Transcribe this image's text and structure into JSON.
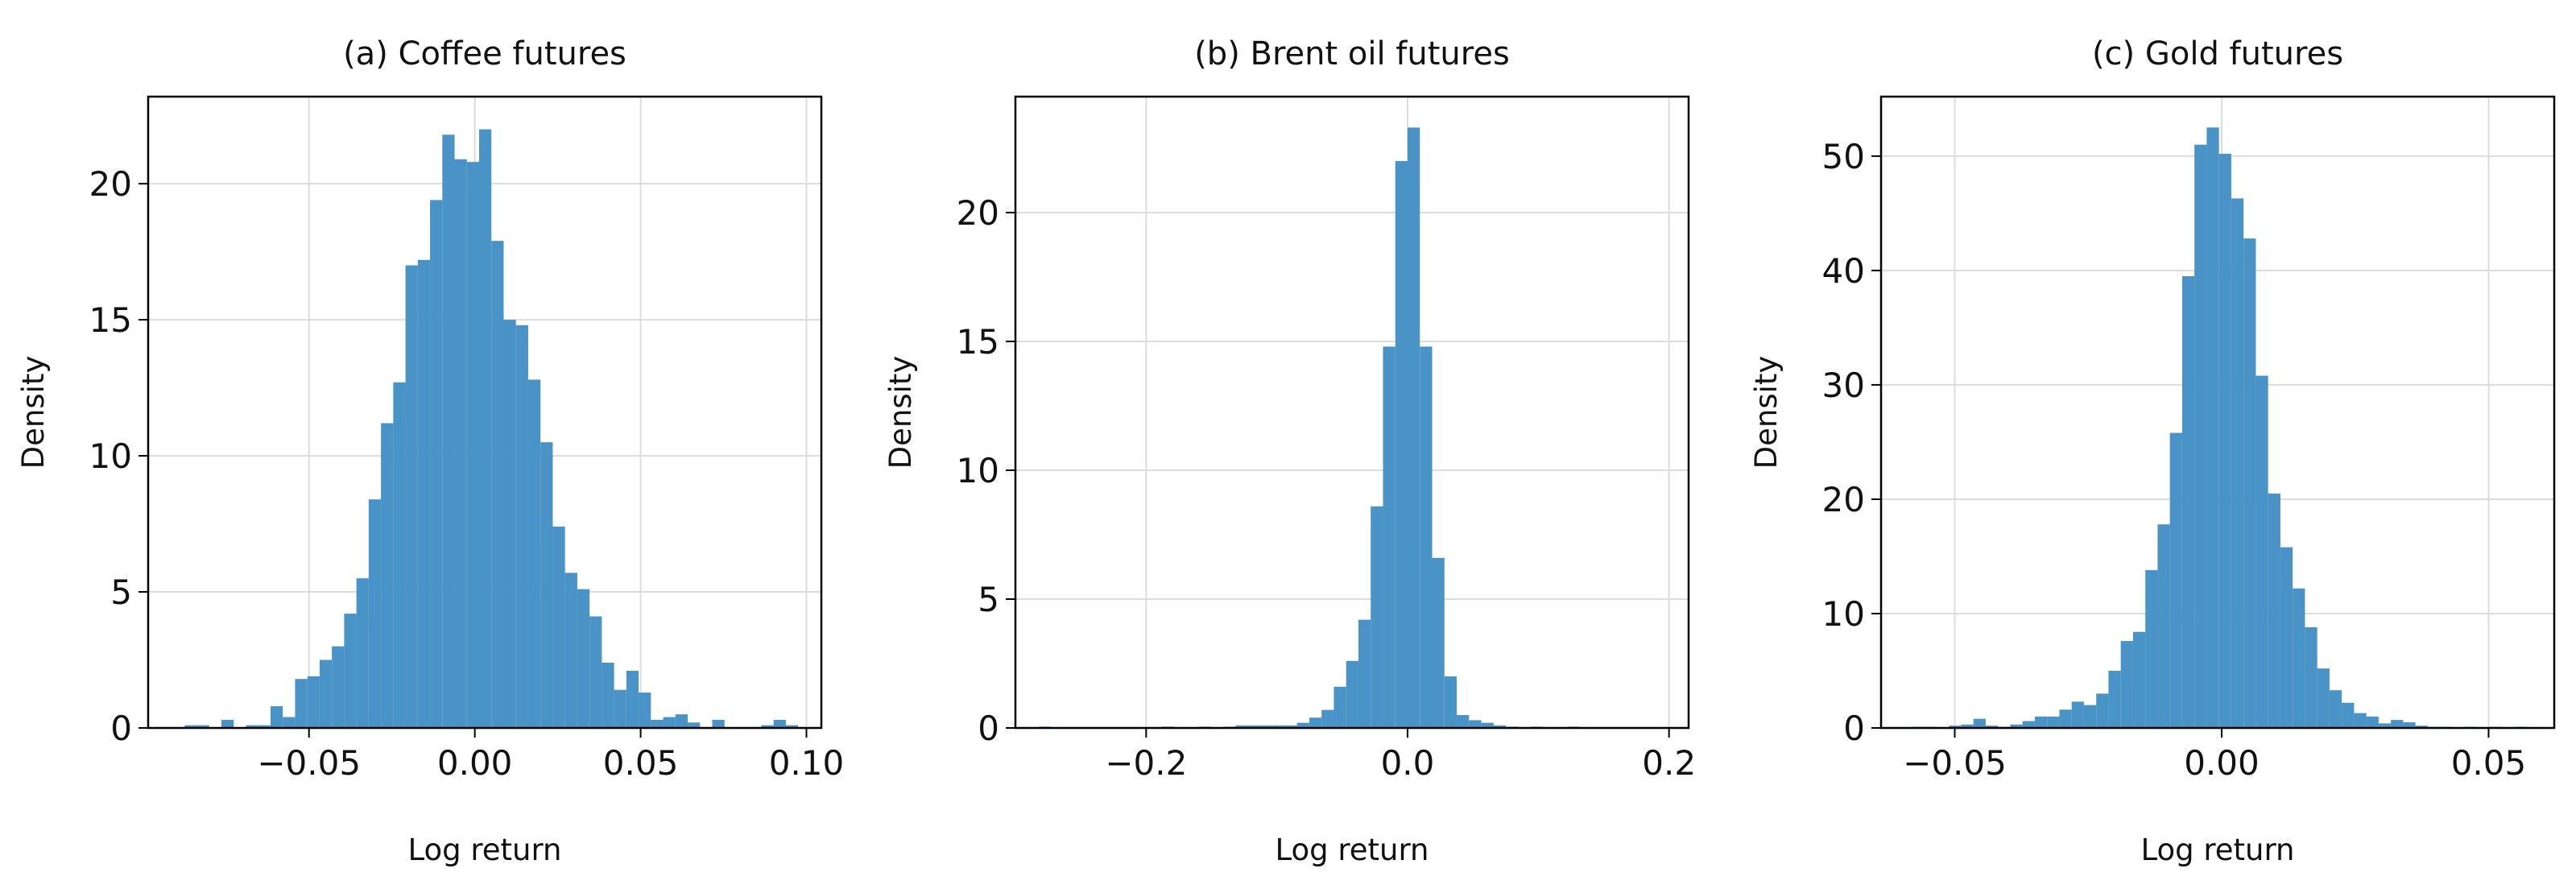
{
  "chart_data": [
    {
      "type": "histogram",
      "title": "(a) Coffee futures",
      "xlabel": "Log return",
      "ylabel": "Density",
      "color": "#4a93c6",
      "grid": true,
      "xlim": [
        -0.0985,
        0.1045
      ],
      "ylim": [
        0,
        23.2
      ],
      "xticks": [
        {
          "value": -0.05,
          "label": "−0.05"
        },
        {
          "value": 0,
          "label": "0.00"
        },
        {
          "value": 0.05,
          "label": "0.05"
        },
        {
          "value": 0.1,
          "label": "0.10"
        }
      ],
      "yticks": [
        0,
        5,
        10,
        15,
        20
      ],
      "bins": [
        -0.0875,
        -0.0838,
        -0.0801,
        -0.0764,
        -0.0727,
        -0.069,
        -0.0653,
        -0.0616,
        -0.0579,
        -0.0542,
        -0.0505,
        -0.0468,
        -0.0431,
        -0.0394,
        -0.0357,
        -0.032,
        -0.0283,
        -0.0246,
        -0.0209,
        -0.0172,
        -0.0135,
        -0.0098,
        -0.0061,
        -0.0024,
        0.0013,
        0.005,
        0.0087,
        0.0124,
        0.0161,
        0.0198,
        0.0235,
        0.0272,
        0.0309,
        0.0346,
        0.0383,
        0.042,
        0.0457,
        0.0494,
        0.0531,
        0.0568,
        0.0605,
        0.0642,
        0.0679,
        0.0716,
        0.0753,
        0.079,
        0.0827,
        0.0864,
        0.0901,
        0.0938,
        0.0975
      ],
      "values": [
        0.1,
        0.1,
        0,
        0.3,
        0,
        0.1,
        0.1,
        0.8,
        0.4,
        1.8,
        1.9,
        2.5,
        3.0,
        4.2,
        5.5,
        8.4,
        11.2,
        12.7,
        17.0,
        17.2,
        19.4,
        21.8,
        20.9,
        20.8,
        22.0,
        17.9,
        15.0,
        14.8,
        12.8,
        10.5,
        7.4,
        5.7,
        5.1,
        4.1,
        2.4,
        1.4,
        2.1,
        1.3,
        0.3,
        0.4,
        0.5,
        0.2,
        0,
        0.3,
        0,
        0,
        0,
        0.1,
        0.3,
        0.1
      ]
    },
    {
      "type": "histogram",
      "title": "(b) Brent oil futures",
      "xlabel": "Log return",
      "ylabel": "Density",
      "color": "#4a93c6",
      "grid": true,
      "xlim": [
        -0.3,
        0.215
      ],
      "ylim": [
        0,
        24.5
      ],
      "xticks": [
        {
          "value": -0.2,
          "label": "−0.2"
        },
        {
          "value": 0,
          "label": "0.0"
        },
        {
          "value": 0.2,
          "label": "0.2"
        }
      ],
      "yticks": [
        0,
        5,
        10,
        15,
        20
      ],
      "bins": [
        -0.282,
        -0.2726,
        -0.2632,
        -0.2538,
        -0.2444,
        -0.235,
        -0.2256,
        -0.2162,
        -0.2068,
        -0.1974,
        -0.188,
        -0.1786,
        -0.1692,
        -0.1598,
        -0.1504,
        -0.141,
        -0.1316,
        -0.1222,
        -0.1128,
        -0.1034,
        -0.094,
        -0.0846,
        -0.0752,
        -0.0658,
        -0.0564,
        -0.047,
        -0.0376,
        -0.0282,
        -0.0188,
        -0.0094,
        0,
        0.0094,
        0.0188,
        0.0282,
        0.0376,
        0.047,
        0.0564,
        0.0658,
        0.0752,
        0.0846,
        0.094,
        0.1034,
        0.1128,
        0.1222,
        0.1316,
        0.141,
        0.1504,
        0.1598,
        0.1692,
        0.1786,
        0.188
      ],
      "values": [
        0.05,
        0,
        0,
        0,
        0,
        0,
        0,
        0,
        0,
        0,
        0.05,
        0,
        0,
        0.05,
        0,
        0.05,
        0.1,
        0.1,
        0.1,
        0.1,
        0.1,
        0.2,
        0.4,
        0.7,
        1.6,
        2.6,
        4.2,
        8.6,
        14.8,
        22.0,
        23.3,
        14.8,
        6.6,
        2.0,
        0.5,
        0.3,
        0.2,
        0.1,
        0.05,
        0,
        0.05,
        0,
        0,
        0.05,
        0,
        0,
        0,
        0,
        0,
        0
      ]
    },
    {
      "type": "histogram",
      "title": "(c) Gold futures",
      "xlabel": "Log return",
      "ylabel": "Density",
      "color": "#4a93c6",
      "grid": true,
      "xlim": [
        -0.0638,
        0.0623
      ],
      "ylim": [
        0,
        55.2
      ],
      "xticks": [
        {
          "value": -0.05,
          "label": "−0.05"
        },
        {
          "value": 0,
          "label": "0.00"
        },
        {
          "value": 0.05,
          "label": "0.05"
        }
      ],
      "yticks": [
        0,
        10,
        20,
        30,
        40,
        50
      ],
      "bins": [
        -0.058,
        -0.0557,
        -0.0534,
        -0.0511,
        -0.0488,
        -0.0465,
        -0.0442,
        -0.0419,
        -0.0396,
        -0.0373,
        -0.035,
        -0.0327,
        -0.0304,
        -0.0281,
        -0.0258,
        -0.0235,
        -0.0212,
        -0.0189,
        -0.0166,
        -0.0143,
        -0.012,
        -0.0097,
        -0.0074,
        -0.0051,
        -0.0028,
        -0.0005,
        0.0018,
        0.0041,
        0.0064,
        0.0087,
        0.011,
        0.0133,
        0.0156,
        0.0179,
        0.0202,
        0.0225,
        0.0248,
        0.0271,
        0.0294,
        0.0317,
        0.034,
        0.0363,
        0.0386,
        0.0409,
        0.0432,
        0.0455,
        0.0478,
        0.0501,
        0.0524,
        0.0547,
        0.057
      ],
      "values": [
        0.1,
        0.1,
        0,
        0.2,
        0.3,
        0.8,
        0.2,
        0.1,
        0.3,
        0.6,
        1.0,
        1.0,
        1.6,
        2.3,
        2.0,
        3.0,
        5.0,
        7.6,
        8.4,
        13.8,
        17.8,
        25.8,
        39.5,
        51.0,
        52.5,
        50.2,
        46.3,
        42.8,
        30.8,
        20.5,
        15.8,
        12.2,
        8.8,
        5.2,
        3.3,
        2.2,
        1.3,
        1.0,
        0.4,
        0.7,
        0.5,
        0.2,
        0.1,
        0.1,
        0,
        0.1,
        0,
        0.1,
        0,
        0.1
      ]
    }
  ]
}
